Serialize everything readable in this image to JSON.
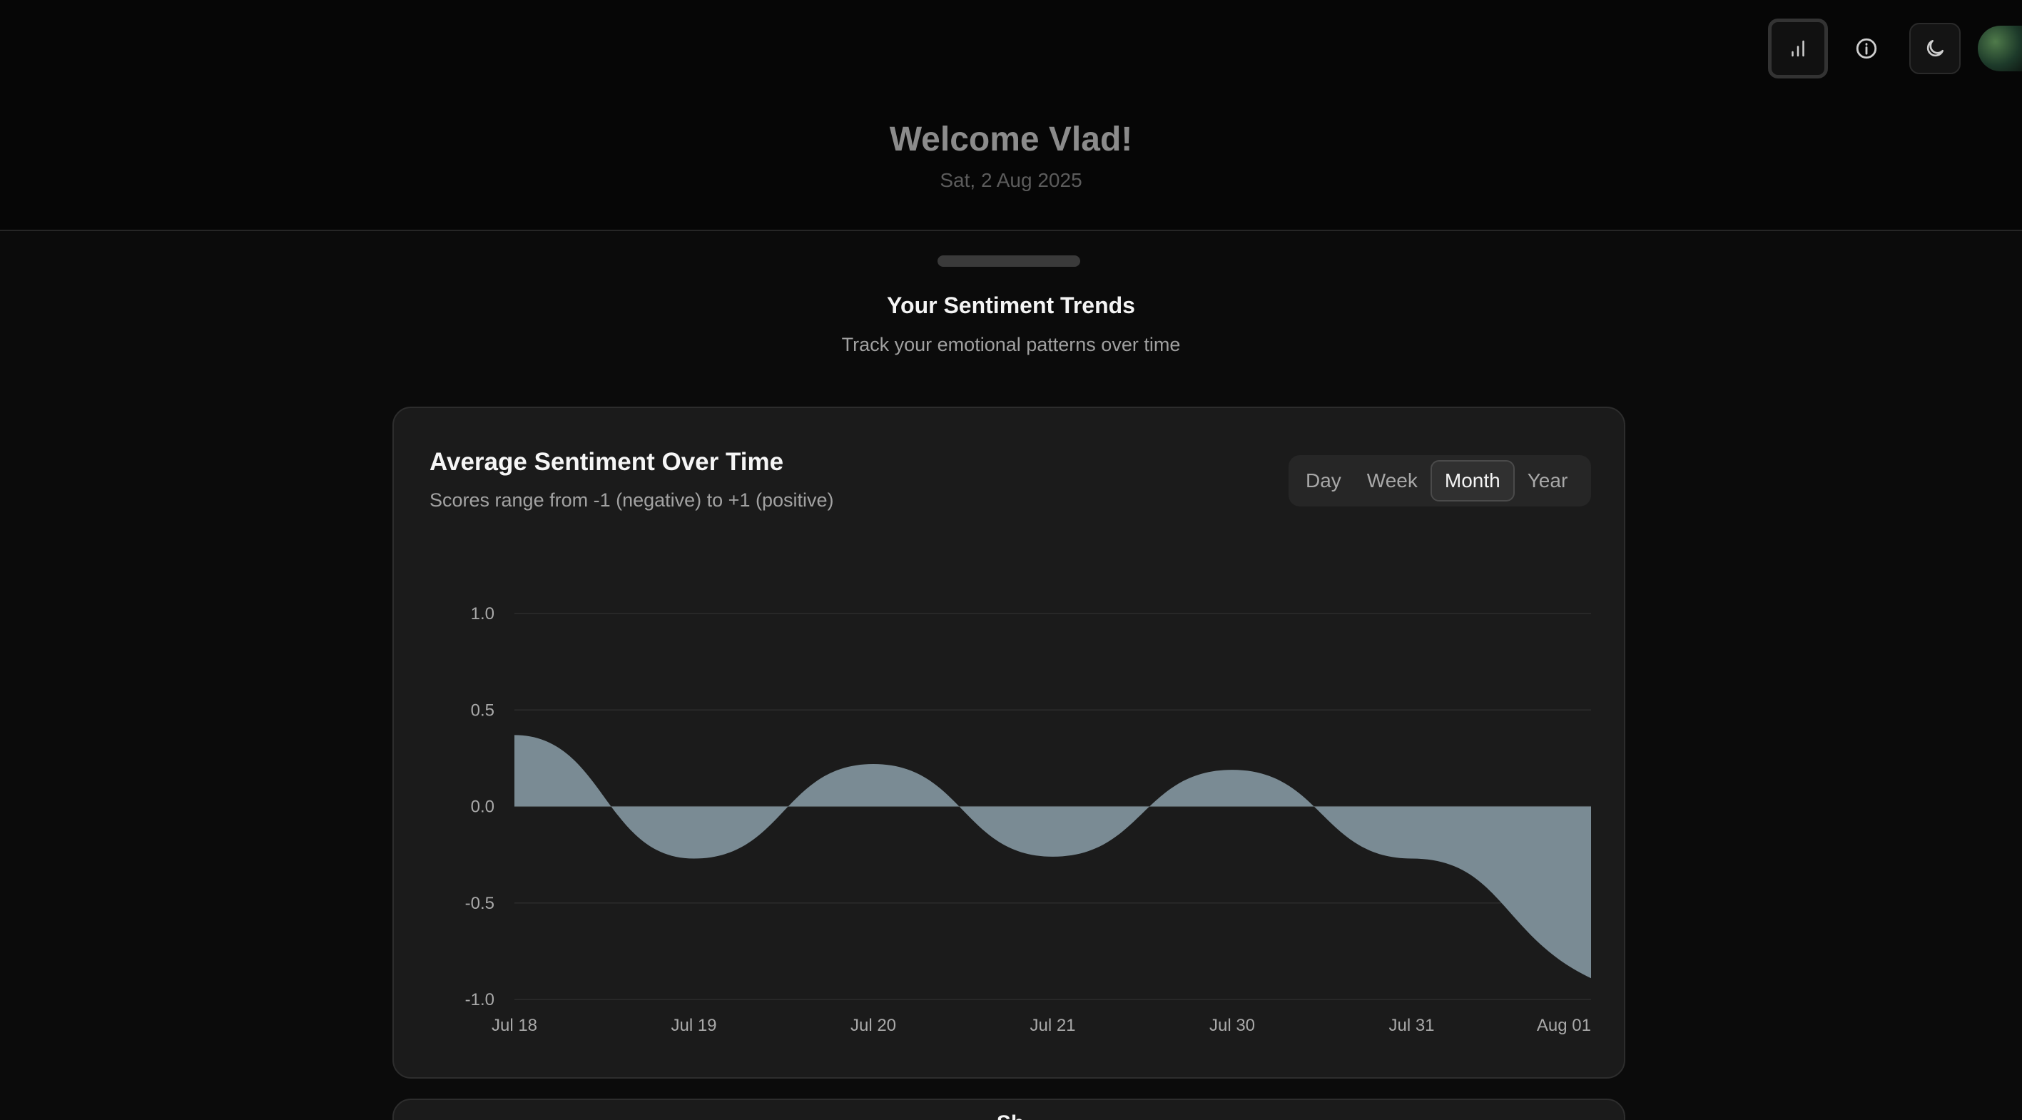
{
  "topbar": {
    "icons": [
      "bar-chart-icon",
      "info-icon",
      "moon-icon"
    ]
  },
  "header": {
    "welcome": "Welcome Vlad!",
    "date": "Sat, 2 Aug 2025"
  },
  "sheet": {
    "title": "Your Sentiment Trends",
    "subtitle": "Track your emotional patterns over time"
  },
  "card": {
    "title": "Average Sentiment Over Time",
    "subtitle": "Scores range from -1 (negative) to +1 (positive)",
    "ranges": [
      "Day",
      "Week",
      "Month",
      "Year"
    ],
    "selected_range": "Month"
  },
  "chart_data": {
    "type": "area",
    "categories": [
      "Jul 18",
      "Jul 19",
      "Jul 20",
      "Jul 21",
      "Jul 30",
      "Jul 31",
      "Aug 01"
    ],
    "values": [
      0.37,
      -0.27,
      0.22,
      -0.26,
      0.19,
      -0.27,
      -0.89
    ],
    "yticks": [
      "1.0",
      "0.5",
      "0.0",
      "-0.5",
      "-1.0"
    ],
    "ylim": [
      -1,
      1
    ],
    "grid": true,
    "fill_color": "#7a8b94"
  },
  "card2": {
    "title": "Sh"
  }
}
